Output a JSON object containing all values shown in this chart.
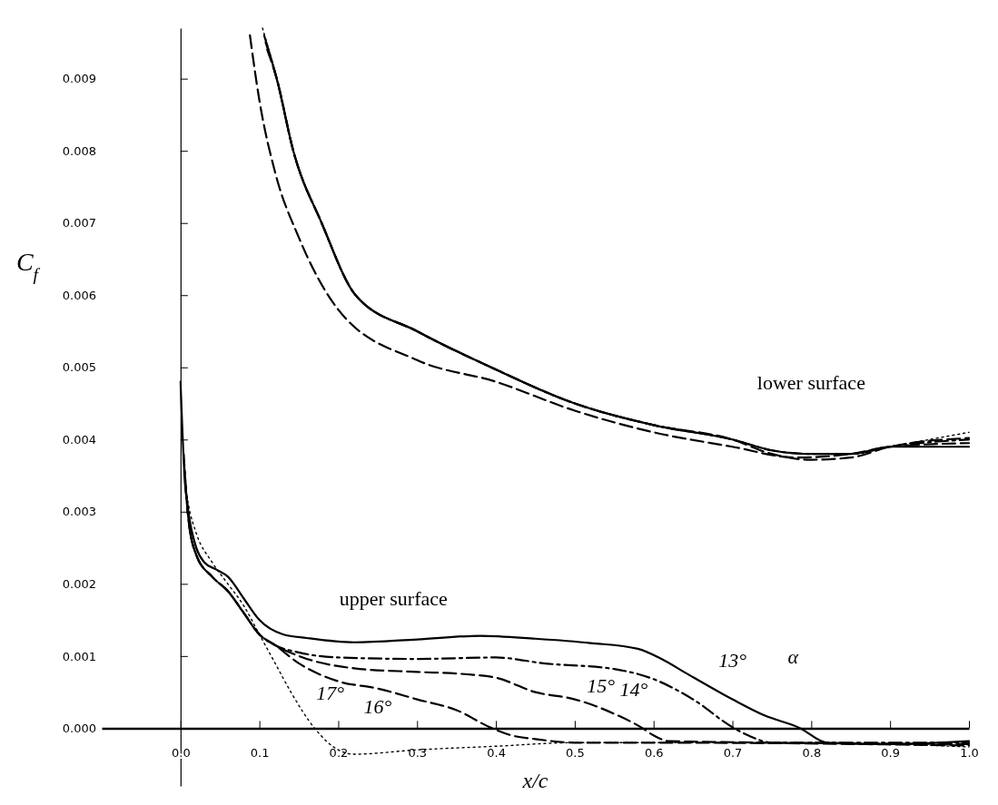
{
  "chart_data": {
    "type": "line",
    "xlabel": "x/c",
    "ylabel": "C$_{f}$",
    "xlim": [
      -0.1,
      1.0
    ],
    "ylim": [
      -0.0008,
      0.0097
    ],
    "xticks": [
      {
        "value": 0,
        "label": "0.0"
      },
      0.1,
      0.2,
      0.3,
      0.4,
      0.5,
      0.6,
      0.7,
      0.8,
      0.9,
      {
        "value": 1,
        "label": "1.0"
      }
    ],
    "yticks": [
      {
        "value": 0,
        "label": "0.000"
      },
      0.001,
      0.002,
      0.003,
      0.004,
      0.005,
      0.006,
      0.007,
      0.008,
      0.009
    ],
    "marker": "none",
    "series": [
      {
        "color": "#000000",
        "line_style": "solid",
        "x": [
          0,
          0.005,
          0.01,
          0.02,
          0.03,
          0.045,
          0.06,
          0.08,
          0.1,
          0.13,
          0.16,
          0.22,
          0.3,
          0.38,
          0.45,
          0.52,
          0.58,
          0.61,
          0.64,
          0.7,
          0.74,
          0.786,
          0.82,
          0.9,
          1.0
        ],
        "values": [
          0.0048,
          0.0035,
          0.003,
          0.0025,
          0.0023,
          0.0022,
          0.0021,
          0.0018,
          0.0015,
          0.0013,
          0.00125,
          0.00119,
          0.00123,
          0.00128,
          0.00124,
          0.00118,
          0.0011,
          0.00096,
          0.00077,
          0.0004,
          0.00018,
          0.0,
          -0.0002,
          -0.00022,
          -0.00018
        ]
      },
      {
        "color": "#000000",
        "line_style": "dashdot",
        "x": [
          0.004,
          0.01,
          0.02,
          0.04,
          0.06,
          0.08,
          0.1,
          0.12,
          0.15,
          0.2,
          0.3,
          0.4,
          0.46,
          0.55,
          0.6,
          0.65,
          0.702,
          0.72,
          0.75,
          1.0
        ],
        "values": [
          0.0038,
          0.0029,
          0.0024,
          0.0021,
          0.0019,
          0.0016,
          0.0013,
          0.00115,
          0.00105,
          0.00098,
          0.00096,
          0.00098,
          0.0009,
          0.00082,
          0.00068,
          0.0004,
          0.0,
          -0.0001,
          -0.0002,
          -0.0002
        ]
      },
      {
        "color": "#000000",
        "line_style": "dashed",
        "x": [
          0.005,
          0.01,
          0.02,
          0.04,
          0.06,
          0.08,
          0.1,
          0.12,
          0.15,
          0.22,
          0.3,
          0.36,
          0.4,
          0.45,
          0.5,
          0.55,
          0.586,
          0.6,
          0.62,
          1.0
        ],
        "values": [
          0.0036,
          0.0029,
          0.0024,
          0.0021,
          0.0019,
          0.0016,
          0.0013,
          0.00115,
          0.001,
          0.00083,
          0.00078,
          0.00075,
          0.0007,
          0.0005,
          0.0004,
          0.0002,
          0.0,
          -0.0001,
          -0.00018,
          -0.00022
        ]
      },
      {
        "color": "#000000",
        "line_style": "dashed",
        "x": [
          0.006,
          0.01,
          0.02,
          0.04,
          0.06,
          0.08,
          0.1,
          0.12,
          0.15,
          0.2,
          0.25,
          0.3,
          0.35,
          0.395,
          0.42,
          0.45,
          0.5,
          0.6,
          1.0
        ],
        "values": [
          0.0034,
          0.0029,
          0.0024,
          0.0021,
          0.0019,
          0.0016,
          0.0013,
          0.00115,
          0.0009,
          0.00065,
          0.00055,
          0.0004,
          0.00025,
          0.0,
          -0.0001,
          -0.00015,
          -0.0002,
          -0.0002,
          -0.00024
        ]
      },
      {
        "color": "#000000",
        "line_style": "dotted",
        "x": [
          0.007,
          0.01,
          0.02,
          0.04,
          0.06,
          0.08,
          0.1,
          0.12,
          0.14,
          0.17,
          0.2,
          0.22,
          0.3,
          0.4,
          0.5,
          0.6,
          0.8,
          1.0
        ],
        "values": [
          0.0033,
          0.0031,
          0.0027,
          0.0023,
          0.002,
          0.0017,
          0.0013,
          0.0009,
          0.0005,
          0.0,
          -0.0003,
          -0.00036,
          -0.0003,
          -0.00025,
          -0.0002,
          -0.0002,
          -0.0002,
          -0.00026
        ]
      },
      {
        "color": "#000000",
        "line_style": "solid",
        "x": [
          0.106,
          0.122,
          0.143,
          0.179,
          0.222,
          0.3,
          0.394,
          0.5,
          0.6,
          0.7,
          0.75,
          0.8,
          0.85,
          0.9,
          1.0
        ],
        "values": [
          0.0096,
          0.009,
          0.008,
          0.007,
          0.006,
          0.0055,
          0.005,
          0.0045,
          0.0042,
          0.004,
          0.00385,
          0.0038,
          0.0038,
          0.0039,
          0.0039
        ]
      },
      {
        "color": "#000000",
        "line_style": "dashdot",
        "x": [
          0.108,
          0.122,
          0.143,
          0.179,
          0.222,
          0.3,
          0.394,
          0.5,
          0.6,
          0.7,
          0.75,
          0.8,
          0.85,
          0.9,
          1.0
        ],
        "values": [
          0.0095,
          0.009,
          0.008,
          0.007,
          0.006,
          0.0055,
          0.005,
          0.0045,
          0.0042,
          0.004,
          0.00385,
          0.0038,
          0.0038,
          0.0039,
          0.004
        ]
      },
      {
        "color": "#000000",
        "line_style": "dashed",
        "x": [
          0.088,
          0.1,
          0.12,
          0.15,
          0.2,
          0.3,
          0.4,
          0.5,
          0.6,
          0.7,
          0.78,
          0.85,
          0.9,
          1.0
        ],
        "values": [
          0.0096,
          0.0087,
          0.0077,
          0.0068,
          0.0058,
          0.0051,
          0.0048,
          0.0044,
          0.0041,
          0.0039,
          0.00375,
          0.0038,
          0.0039,
          0.00395
        ]
      },
      {
        "color": "#000000",
        "line_style": "dashed",
        "x": [
          0.11,
          0.122,
          0.143,
          0.179,
          0.222,
          0.3,
          0.394,
          0.5,
          0.6,
          0.7,
          0.75,
          0.8,
          0.85,
          0.9,
          1.0
        ],
        "values": [
          0.0094,
          0.009,
          0.008,
          0.007,
          0.006,
          0.0055,
          0.005,
          0.0045,
          0.0042,
          0.004,
          0.0038,
          0.00372,
          0.00375,
          0.0039,
          0.00402
        ]
      },
      {
        "color": "#000000",
        "line_style": "dotted",
        "x": [
          0.104,
          0.122,
          0.143,
          0.179,
          0.222,
          0.3,
          0.394,
          0.5,
          0.6,
          0.7,
          0.75,
          0.8,
          0.85,
          0.9,
          0.95,
          1.0
        ],
        "values": [
          0.0097,
          0.009,
          0.008,
          0.007,
          0.006,
          0.0055,
          0.005,
          0.0045,
          0.0042,
          0.004,
          0.00385,
          0.0038,
          0.0038,
          0.0039,
          0.004,
          0.0041
        ]
      }
    ],
    "annotations": [
      "upper surface",
      "lower surface",
      "13°",
      "14°",
      "15°",
      "16°",
      "17°",
      "α"
    ]
  }
}
